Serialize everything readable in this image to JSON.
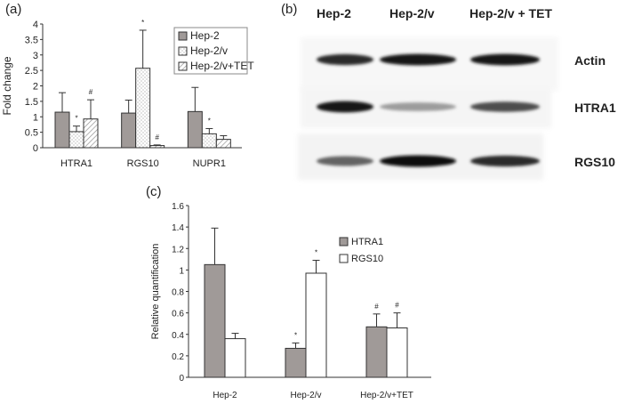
{
  "panels": {
    "a_label": "(a)",
    "b_label": "(b)",
    "c_label": "(c)"
  },
  "chart_data": [
    {
      "panel": "(a)",
      "type": "bar",
      "ylabel": "Fold change",
      "categories": [
        "HTRA1",
        "RGS10",
        "NUPR1"
      ],
      "ylim": [
        0,
        4
      ],
      "yticks": [
        "0",
        "0.5",
        "1",
        "1.5",
        "2",
        "2.5",
        "3",
        "3.5",
        "4"
      ],
      "legend_position": "top-right",
      "series": [
        {
          "name": "Hep-2",
          "values": [
            1.15,
            1.12,
            1.17
          ],
          "errors": [
            0.63,
            0.42,
            0.78
          ],
          "fill": "#a09a98",
          "pattern": "solid"
        },
        {
          "name": "Hep-2/v",
          "values": [
            0.52,
            2.57,
            0.45
          ],
          "errors": [
            0.18,
            1.23,
            0.17
          ],
          "fill": "#ffffff",
          "pattern": "dots"
        },
        {
          "name": "Hep-2/v+TET",
          "values": [
            0.93,
            0.07,
            0.27
          ],
          "errors": [
            0.62,
            0.02,
            0.12
          ],
          "fill": "#ffffff",
          "pattern": "hatch"
        }
      ],
      "markers": [
        {
          "category": "HTRA1",
          "series": "Hep-2/v",
          "symbol": "*"
        },
        {
          "category": "HTRA1",
          "series": "Hep-2/v+TET",
          "symbol": "#"
        },
        {
          "category": "RGS10",
          "series": "Hep-2/v",
          "symbol": "*"
        },
        {
          "category": "RGS10",
          "series": "Hep-2/v+TET",
          "symbol": "#"
        },
        {
          "category": "NUPR1",
          "series": "Hep-2/v",
          "symbol": "*"
        }
      ]
    },
    {
      "panel": "(c)",
      "type": "bar",
      "ylabel": "Relative quantification",
      "categories": [
        "Hep-2",
        "Hep-2/v",
        "Hep-2/v+TET"
      ],
      "ylim": [
        0,
        1.6
      ],
      "yticks": [
        "0",
        "0.2",
        "0.4",
        "0.6",
        "0.8",
        "1",
        "1.2",
        "1.4",
        "1.6"
      ],
      "legend_position": "top-right",
      "series": [
        {
          "name": "HTRA1",
          "values": [
            1.05,
            0.27,
            0.47
          ],
          "errors": [
            0.34,
            0.05,
            0.12
          ],
          "fill": "#a09a98"
        },
        {
          "name": "RGS10",
          "values": [
            0.36,
            0.97,
            0.46
          ],
          "errors": [
            0.05,
            0.12,
            0.14
          ],
          "fill": "#ffffff"
        }
      ],
      "markers": [
        {
          "category": "Hep-2/v",
          "series": "HTRA1",
          "symbol": "*"
        },
        {
          "category": "Hep-2/v",
          "series": "RGS10",
          "symbol": "*"
        },
        {
          "category": "Hep-2/v+TET",
          "series": "HTRA1",
          "symbol": "#"
        },
        {
          "category": "Hep-2/v+TET",
          "series": "RGS10",
          "symbol": "#"
        }
      ]
    }
  ],
  "blot": {
    "lanes": [
      "Hep-2",
      "Hep-2/v",
      "Hep-2/v + TET"
    ],
    "rows": [
      {
        "label": "Actin",
        "intensities": [
          0.85,
          0.95,
          0.95
        ]
      },
      {
        "label": "HTRA1",
        "intensities": [
          0.95,
          0.35,
          0.7
        ]
      },
      {
        "label": "RGS10",
        "intensities": [
          0.6,
          0.98,
          0.85
        ]
      }
    ]
  }
}
